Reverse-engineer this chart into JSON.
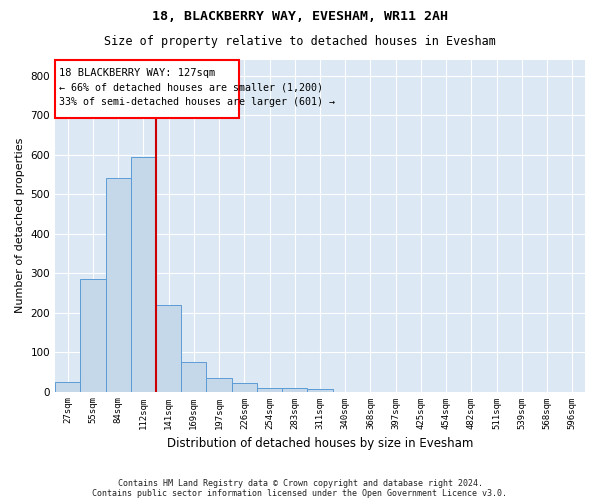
{
  "title1": "18, BLACKBERRY WAY, EVESHAM, WR11 2AH",
  "title2": "Size of property relative to detached houses in Evesham",
  "xlabel": "Distribution of detached houses by size in Evesham",
  "ylabel": "Number of detached properties",
  "categories": [
    "27sqm",
    "55sqm",
    "84sqm",
    "112sqm",
    "141sqm",
    "169sqm",
    "197sqm",
    "226sqm",
    "254sqm",
    "283sqm",
    "311sqm",
    "340sqm",
    "368sqm",
    "397sqm",
    "425sqm",
    "454sqm",
    "482sqm",
    "511sqm",
    "539sqm",
    "568sqm",
    "596sqm"
  ],
  "values": [
    25,
    285,
    540,
    595,
    220,
    75,
    35,
    22,
    10,
    10,
    7,
    0,
    0,
    0,
    0,
    0,
    0,
    0,
    0,
    0,
    0
  ],
  "bar_color": "#c5d8ea",
  "bar_edge_color": "#5b9bd5",
  "annotation_line1": "18 BLACKBERRY WAY: 127sqm",
  "annotation_line2": "← 66% of detached houses are smaller (1,200)",
  "annotation_line3": "33% of semi-detached houses are larger (601) →",
  "vline_color": "#cc0000",
  "ylim": [
    0,
    840
  ],
  "yticks": [
    0,
    100,
    200,
    300,
    400,
    500,
    600,
    700,
    800
  ],
  "background_color": "#dce9f5",
  "grid_color": "#ffffff",
  "footnote1": "Contains HM Land Registry data © Crown copyright and database right 2024.",
  "footnote2": "Contains public sector information licensed under the Open Government Licence v3.0."
}
